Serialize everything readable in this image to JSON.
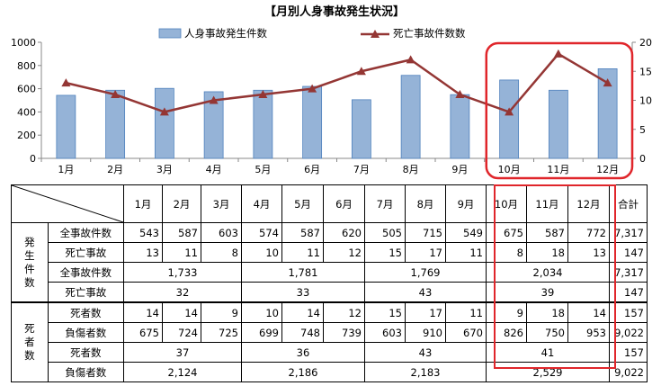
{
  "chart_data": {
    "type": "bar+line",
    "title": "【月別人身事故発生状況】",
    "categories": [
      "1月",
      "2月",
      "3月",
      "4月",
      "5月",
      "6月",
      "7月",
      "8月",
      "9月",
      "10月",
      "11月",
      "12月"
    ],
    "series": [
      {
        "name": "人身事故発生件数",
        "type": "bar",
        "axis": "left",
        "values": [
          543,
          587,
          603,
          574,
          587,
          620,
          505,
          715,
          549,
          675,
          587,
          772
        ]
      },
      {
        "name": "死亡事故件数数",
        "type": "line",
        "axis": "right",
        "values": [
          13,
          11,
          8,
          10,
          11,
          12,
          15,
          17,
          11,
          8,
          18,
          13
        ]
      }
    ],
    "y_left": {
      "min": 0,
      "max": 1000,
      "ticks": [
        "0",
        "200",
        "400",
        "600",
        "800",
        "1000"
      ]
    },
    "y_right": {
      "min": 0,
      "max": 20,
      "ticks": [
        "0",
        "5",
        "10",
        "15",
        "20"
      ]
    },
    "legend_position": "top",
    "highlight_months": [
      "10月",
      "11月",
      "12月"
    ],
    "colors": {
      "bar": "#95b3d7",
      "bar_edge": "#4f81bd",
      "line": "#943634",
      "highlight": "#e0262b"
    }
  },
  "table": {
    "header": {
      "months": [
        "1月",
        "2月",
        "3月",
        "4月",
        "5月",
        "6月",
        "7月",
        "8月",
        "9月",
        "10月",
        "11月",
        "12月"
      ],
      "total": "合計"
    },
    "groups": {
      "accidents": "発生件数",
      "casualties": "死者数"
    },
    "rows": [
      {
        "label": "全事故件数",
        "values": [
          "543",
          "587",
          "603",
          "574",
          "587",
          "620",
          "505",
          "715",
          "549",
          "675",
          "587",
          "772"
        ],
        "total": "7,317"
      },
      {
        "label": "死亡事故",
        "values": [
          "13",
          "11",
          "8",
          "10",
          "11",
          "12",
          "15",
          "17",
          "11",
          "8",
          "18",
          "13"
        ],
        "total": "147"
      },
      {
        "label": "全事故件数",
        "quarters": [
          "1,733",
          "1,781",
          "1,769",
          "2,034"
        ],
        "total": "7,317"
      },
      {
        "label": "死亡事故",
        "quarters": [
          "32",
          "33",
          "43",
          "39"
        ],
        "total": "147"
      },
      {
        "label": "死者数",
        "values": [
          "14",
          "14",
          "9",
          "10",
          "14",
          "12",
          "15",
          "17",
          "11",
          "9",
          "18",
          "14"
        ],
        "total": "157"
      },
      {
        "label": "負傷者数",
        "values": [
          "675",
          "724",
          "725",
          "699",
          "748",
          "739",
          "603",
          "910",
          "670",
          "826",
          "750",
          "953"
        ],
        "total": "9,022"
      },
      {
        "label": "死者数",
        "quarters": [
          "37",
          "36",
          "43",
          "41"
        ],
        "total": "157"
      },
      {
        "label": "負傷者数",
        "quarters": [
          "2,124",
          "2,186",
          "2,183",
          "2,529"
        ],
        "total": "9,022"
      }
    ]
  }
}
